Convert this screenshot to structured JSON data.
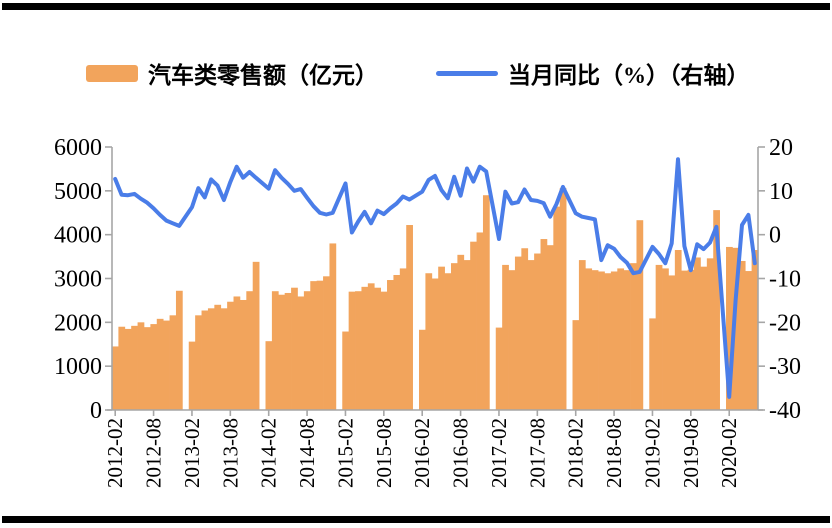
{
  "figure": {
    "background": "#ffffff",
    "border_rule_color": "#000000"
  },
  "colors": {
    "bar": "#F2A45C",
    "line": "#4A7DE8",
    "axis": "#A6A6A6",
    "text": "#000000"
  },
  "chart_data": {
    "type": "bar",
    "title": "",
    "legend_position": "top",
    "grid": false,
    "categories": [
      "2012-02",
      "2012-03",
      "2012-04",
      "2012-05",
      "2012-06",
      "2012-07",
      "2012-08",
      "2012-09",
      "2012-10",
      "2012-11",
      "2012-12",
      "2013-01",
      "2013-02",
      "2013-03",
      "2013-04",
      "2013-05",
      "2013-06",
      "2013-07",
      "2013-08",
      "2013-09",
      "2013-10",
      "2013-11",
      "2013-12",
      "2014-01",
      "2014-02",
      "2014-03",
      "2014-04",
      "2014-05",
      "2014-06",
      "2014-07",
      "2014-08",
      "2014-09",
      "2014-10",
      "2014-11",
      "2014-12",
      "2015-01",
      "2015-02",
      "2015-03",
      "2015-04",
      "2015-05",
      "2015-06",
      "2015-07",
      "2015-08",
      "2015-09",
      "2015-10",
      "2015-11",
      "2015-12",
      "2016-01",
      "2016-02",
      "2016-03",
      "2016-04",
      "2016-05",
      "2016-06",
      "2016-07",
      "2016-08",
      "2016-09",
      "2016-10",
      "2016-11",
      "2016-12",
      "2017-01",
      "2017-02",
      "2017-03",
      "2017-04",
      "2017-05",
      "2017-06",
      "2017-07",
      "2017-08",
      "2017-09",
      "2017-10",
      "2017-11",
      "2017-12",
      "2018-01",
      "2018-02",
      "2018-03",
      "2018-04",
      "2018-05",
      "2018-06",
      "2018-07",
      "2018-08",
      "2018-09",
      "2018-10",
      "2018-11",
      "2018-12",
      "2019-01",
      "2019-02",
      "2019-03",
      "2019-04",
      "2019-05",
      "2019-06",
      "2019-07",
      "2019-08",
      "2019-09",
      "2019-10",
      "2019-11",
      "2019-12",
      "2020-01",
      "2020-02",
      "2020-03",
      "2020-04",
      "2020-05",
      "2020-06"
    ],
    "series": [
      {
        "name": "汽车类零售额（亿元）",
        "type": "bar",
        "axis": "left",
        "values": [
          1450,
          1900,
          1850,
          1920,
          2000,
          1890,
          1960,
          2080,
          2040,
          2160,
          2720,
          null,
          1560,
          2160,
          2270,
          2320,
          2400,
          2320,
          2470,
          2590,
          2510,
          2710,
          3380,
          null,
          1570,
          2710,
          2630,
          2670,
          2790,
          2590,
          2710,
          2940,
          2950,
          3050,
          3800,
          null,
          1790,
          2700,
          2710,
          2810,
          2890,
          2790,
          2700,
          2965,
          3080,
          3230,
          4220,
          null,
          1830,
          3120,
          3000,
          3270,
          3120,
          3350,
          3540,
          3420,
          3840,
          4050,
          4900,
          null,
          1880,
          3310,
          3190,
          3500,
          3690,
          3420,
          3570,
          3900,
          3760,
          4640,
          5060,
          null,
          2050,
          3420,
          3230,
          3190,
          3160,
          3120,
          3160,
          3230,
          3190,
          3350,
          4330,
          null,
          2090,
          3310,
          3230,
          3070,
          3650,
          3180,
          3200,
          3480,
          3270,
          3460,
          4560,
          null,
          3720,
          3700,
          3400,
          3170,
          3650
        ]
      },
      {
        "name": "当月同比（%）（右轴）",
        "type": "line",
        "axis": "right",
        "values": [
          12.7,
          9.1,
          9.0,
          9.3,
          8.2,
          7.3,
          6.0,
          4.5,
          3.2,
          2.6,
          2.0,
          null,
          6.3,
          10.6,
          8.5,
          12.6,
          11.2,
          7.9,
          12.0,
          15.5,
          13.0,
          14.3,
          13.0,
          null,
          10.5,
          14.7,
          13.0,
          11.6,
          10.0,
          10.4,
          8.4,
          6.5,
          5.0,
          4.6,
          5.0,
          null,
          11.7,
          0.5,
          3.0,
          5.2,
          2.6,
          5.5,
          4.7,
          6.0,
          7.1,
          8.7,
          8.0,
          null,
          9.8,
          12.5,
          13.4,
          10.2,
          8.3,
          13.2,
          8.9,
          15.1,
          12.1,
          15.5,
          14.4,
          null,
          -1.0,
          9.8,
          7.1,
          7.4,
          10.3,
          7.9,
          7.7,
          7.2,
          4.1,
          7.0,
          10.9,
          null,
          4.9,
          4.1,
          3.8,
          3.5,
          -5.8,
          -2.4,
          -3.2,
          -5.1,
          -6.4,
          -8.8,
          -8.5,
          null,
          -2.8,
          -4.4,
          -6.5,
          -2.0,
          17.2,
          -2.6,
          -8.1,
          -2.2,
          -3.3,
          -1.8,
          1.8,
          null,
          -37.0,
          -15.0,
          2.2,
          4.5,
          -6.5
        ]
      }
    ],
    "x_tick_labels": [
      "2012-02",
      "2012-08",
      "2013-02",
      "2013-08",
      "2014-02",
      "2014-08",
      "2015-02",
      "2015-08",
      "2016-02",
      "2016-08",
      "2017-02",
      "2017-08",
      "2018-02",
      "2018-08",
      "2019-02",
      "2019-08",
      "2020-02"
    ],
    "left_axis": {
      "min": 0,
      "max": 6000,
      "step": 1000,
      "ticks": [
        "0",
        "1000",
        "2000",
        "3000",
        "4000",
        "5000",
        "6000"
      ]
    },
    "right_axis": {
      "min": -40,
      "max": 20,
      "step": 10,
      "ticks": [
        "-40",
        "-30",
        "-20",
        "-10",
        "0",
        "10",
        "20"
      ]
    }
  }
}
